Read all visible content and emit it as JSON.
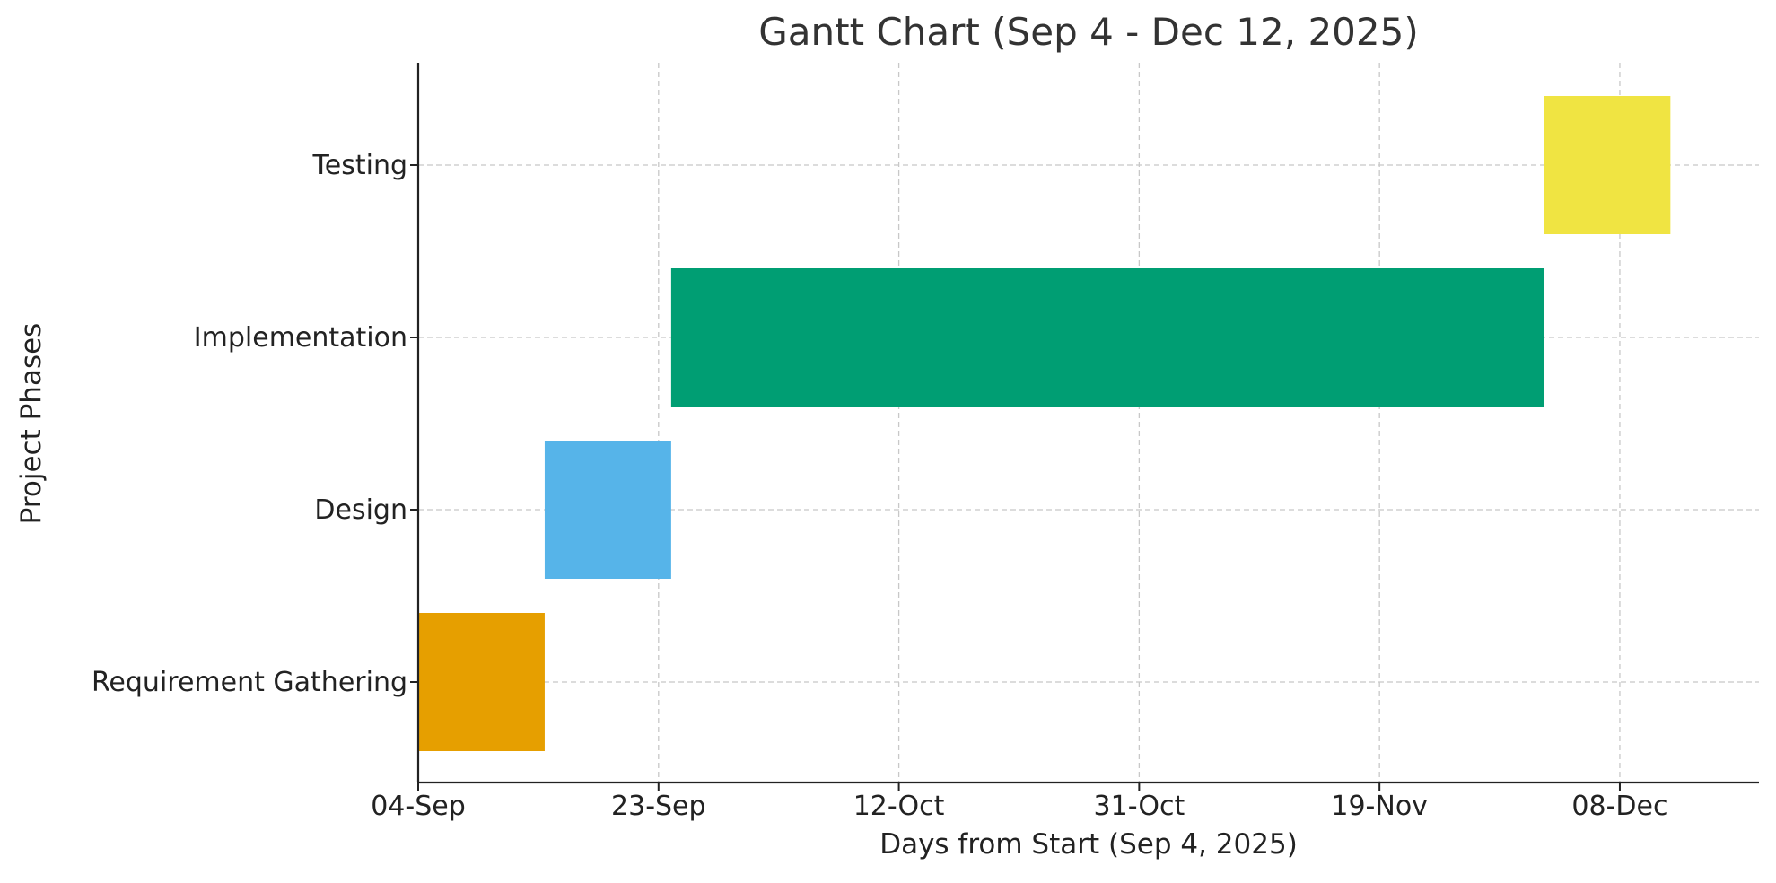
{
  "chart_data": {
    "type": "gantt",
    "title": "Gantt Chart (Sep 4 - Dec 12, 2025)",
    "xlabel": "Days from Start (Sep 4, 2025)",
    "ylabel": "Project Phases",
    "xlim": [
      "2025-09-04",
      "2025-12-19"
    ],
    "x_ticks": [
      {
        "date": "2025-09-04",
        "label": "04-Sep"
      },
      {
        "date": "2025-09-23",
        "label": "23-Sep"
      },
      {
        "date": "2025-10-12",
        "label": "12-Oct"
      },
      {
        "date": "2025-10-31",
        "label": "31-Oct"
      },
      {
        "date": "2025-11-19",
        "label": "19-Nov"
      },
      {
        "date": "2025-12-08",
        "label": "08-Dec"
      }
    ],
    "grid": true,
    "tasks": [
      {
        "name": "Requirement Gathering",
        "start": "2025-09-04",
        "end": "2025-09-14",
        "color": "#E69F00"
      },
      {
        "name": "Design",
        "start": "2025-09-14",
        "end": "2025-09-24",
        "color": "#56B4E9"
      },
      {
        "name": "Implementation",
        "start": "2025-09-24",
        "end": "2025-12-02",
        "color": "#009E73"
      },
      {
        "name": "Testing",
        "start": "2025-12-02",
        "end": "2025-12-12",
        "color": "#F0E442"
      }
    ]
  }
}
